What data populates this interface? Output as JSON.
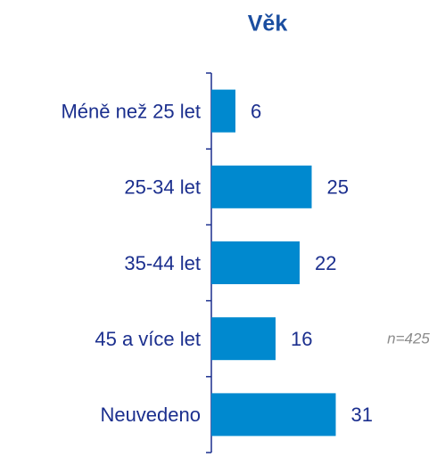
{
  "chart_data": {
    "type": "bar",
    "orientation": "horizontal",
    "title": "Věk",
    "categories": [
      "Méně než 25 let",
      "25-34 let",
      "35-44 let",
      "45 a více let",
      "Neuvedeno"
    ],
    "values": [
      6,
      25,
      22,
      16,
      31
    ],
    "color": "#0089cf",
    "annotation": "n=425"
  }
}
